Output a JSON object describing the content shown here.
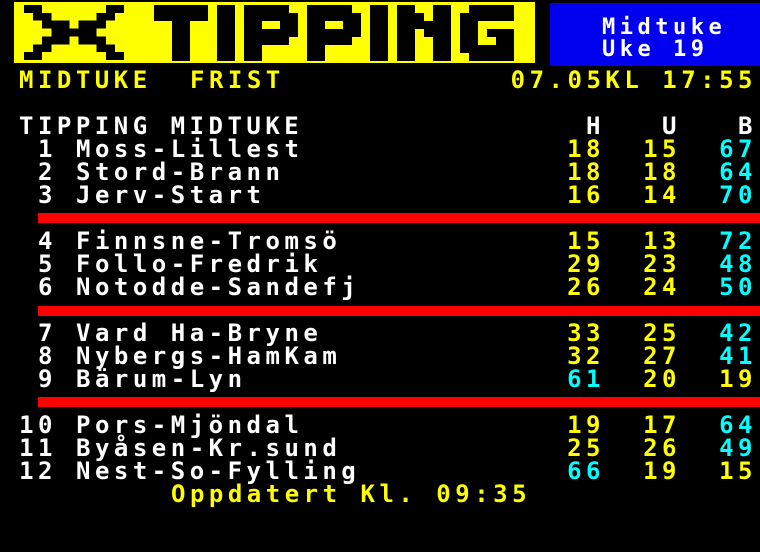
{
  "header": {
    "logo_text": "TIPPING",
    "channel_box": {
      "line1": "Midtuke",
      "line2": "Uke 19"
    },
    "info_row": {
      "label1": "MIDTUKE",
      "label2": "FRIST",
      "deadline": "07.05KL 17:55"
    }
  },
  "table": {
    "title": "TIPPING MIDTUKE",
    "columns": [
      "H",
      "U",
      "B"
    ],
    "rows": [
      {
        "num": "1",
        "name": "Moss-Lillest",
        "h": "18",
        "u": "15",
        "b": "67",
        "cyan": "b"
      },
      {
        "num": "2",
        "name": "Stord-Brann",
        "h": "18",
        "u": "18",
        "b": "64",
        "cyan": "b"
      },
      {
        "num": "3",
        "name": "Jerv-Start",
        "h": "16",
        "u": "14",
        "b": "70",
        "cyan": "b"
      },
      {
        "num": "4",
        "name": "Finnsne-Tromsö",
        "h": "15",
        "u": "13",
        "b": "72",
        "cyan": "b"
      },
      {
        "num": "5",
        "name": "Follo-Fredrik",
        "h": "29",
        "u": "23",
        "b": "48",
        "cyan": "b"
      },
      {
        "num": "6",
        "name": "Notodde-Sandefj",
        "h": "26",
        "u": "24",
        "b": "50",
        "cyan": "b"
      },
      {
        "num": "7",
        "name": "Vard Ha-Bryne",
        "h": "33",
        "u": "25",
        "b": "42",
        "cyan": "b"
      },
      {
        "num": "8",
        "name": "Nybergs-HamKam",
        "h": "32",
        "u": "27",
        "b": "41",
        "cyan": "b"
      },
      {
        "num": "9",
        "name": "Bärum-Lyn",
        "h": "61",
        "u": "20",
        "b": "19",
        "cyan": "h"
      },
      {
        "num": "10",
        "name": "Pors-Mjöndal",
        "h": "19",
        "u": "17",
        "b": "64",
        "cyan": "b"
      },
      {
        "num": "11",
        "name": "Byåsen-Kr.sund",
        "h": "25",
        "u": "26",
        "b": "49",
        "cyan": "b"
      },
      {
        "num": "12",
        "name": "Nest-So-Fylling",
        "h": "66",
        "u": "19",
        "b": "15",
        "cyan": "h"
      }
    ]
  },
  "footer": {
    "updated": "Oppdatert Kl. 09:35"
  },
  "colors": {
    "background": "#000000",
    "banner_yellow": "#ffff00",
    "channel_blue": "#0000ee",
    "text_white": "#ffffff",
    "text_yellow": "#ffff00",
    "text_cyan": "#00ffff",
    "separator_red": "#ff0000"
  }
}
